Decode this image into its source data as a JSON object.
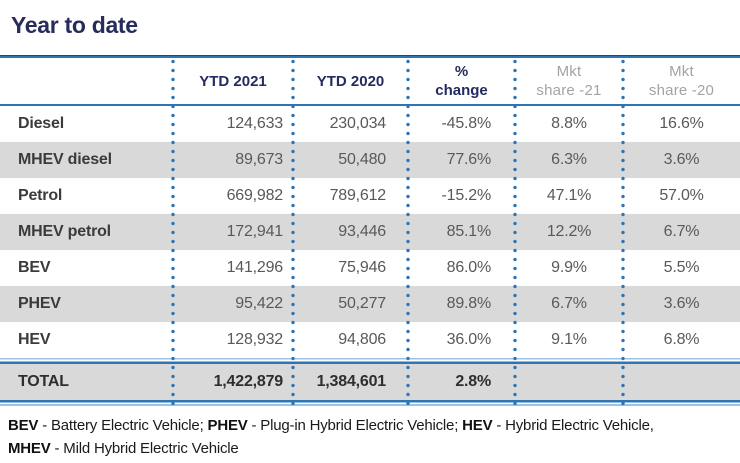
{
  "title": "Year to date",
  "table": {
    "columns": [
      {
        "line1": "",
        "line2": ""
      },
      {
        "line1": "YTD 2021",
        "line2": ""
      },
      {
        "line1": "YTD 2020",
        "line2": ""
      },
      {
        "line1": "%",
        "line2": "change"
      },
      {
        "line1": "Mkt",
        "line2": "share -21"
      },
      {
        "line1": "Mkt",
        "line2": "share -20"
      }
    ],
    "rows": [
      {
        "label": "Diesel",
        "ytd2021": "124,633",
        "ytd2020": "230,034",
        "change": "-45.8%",
        "share21": "8.8%",
        "share20": "16.6%"
      },
      {
        "label": "MHEV diesel",
        "ytd2021": "89,673",
        "ytd2020": "50,480",
        "change": "77.6%",
        "share21": "6.3%",
        "share20": "3.6%"
      },
      {
        "label": "Petrol",
        "ytd2021": "669,982",
        "ytd2020": "789,612",
        "change": "-15.2%",
        "share21": "47.1%",
        "share20": "57.0%"
      },
      {
        "label": "MHEV petrol",
        "ytd2021": "172,941",
        "ytd2020": "93,446",
        "change": "85.1%",
        "share21": "12.2%",
        "share20": "6.7%"
      },
      {
        "label": "BEV",
        "ytd2021": "141,296",
        "ytd2020": "75,946",
        "change": "86.0%",
        "share21": "9.9%",
        "share20": "5.5%"
      },
      {
        "label": "PHEV",
        "ytd2021": "95,422",
        "ytd2020": "50,277",
        "change": "89.8%",
        "share21": "6.7%",
        "share20": "3.6%"
      },
      {
        "label": "HEV",
        "ytd2021": "128,932",
        "ytd2020": "94,806",
        "change": "36.0%",
        "share21": "9.1%",
        "share20": "6.8%"
      }
    ],
    "total": {
      "label": "TOTAL",
      "ytd2021": "1,422,879",
      "ytd2020": "1,384,601",
      "change": "2.8%",
      "share21": "",
      "share20": ""
    }
  },
  "footnote": {
    "line1": [
      {
        "abbr": "BEV",
        "rest": " - Battery Electric Vehicle; "
      },
      {
        "abbr": "PHEV",
        "rest": " - Plug-in Hybrid Electric Vehicle; "
      },
      {
        "abbr": "HEV",
        "rest": " - Hybrid Electric Vehicle,"
      }
    ],
    "line2": [
      {
        "abbr": "MHEV",
        "rest": " - Mild Hybrid Electric Vehicle"
      }
    ]
  },
  "colors": {
    "navy": "#242b5e",
    "line_blue": "#2e75b6",
    "line_light_blue": "#9cc3e6",
    "stripe_gray": "#d9d9d9",
    "header_gray": "#a3a3a3",
    "value_gray": "#595959"
  },
  "chart_data": {
    "type": "table",
    "title": "Year to date",
    "columns": [
      "",
      "YTD 2021",
      "YTD 2020",
      "% change",
      "Mkt share -21",
      "Mkt share -20"
    ],
    "rows": [
      [
        "Diesel",
        124633,
        230034,
        -45.8,
        8.8,
        16.6
      ],
      [
        "MHEV diesel",
        89673,
        50480,
        77.6,
        6.3,
        3.6
      ],
      [
        "Petrol",
        669982,
        789612,
        -15.2,
        47.1,
        57.0
      ],
      [
        "MHEV petrol",
        172941,
        93446,
        85.1,
        12.2,
        6.7
      ],
      [
        "BEV",
        141296,
        75946,
        86.0,
        9.9,
        5.5
      ],
      [
        "PHEV",
        95422,
        50277,
        89.8,
        6.7,
        3.6
      ],
      [
        "HEV",
        128932,
        94806,
        36.0,
        9.1,
        6.8
      ],
      [
        "TOTAL",
        1422879,
        1384601,
        2.8,
        null,
        null
      ]
    ]
  }
}
